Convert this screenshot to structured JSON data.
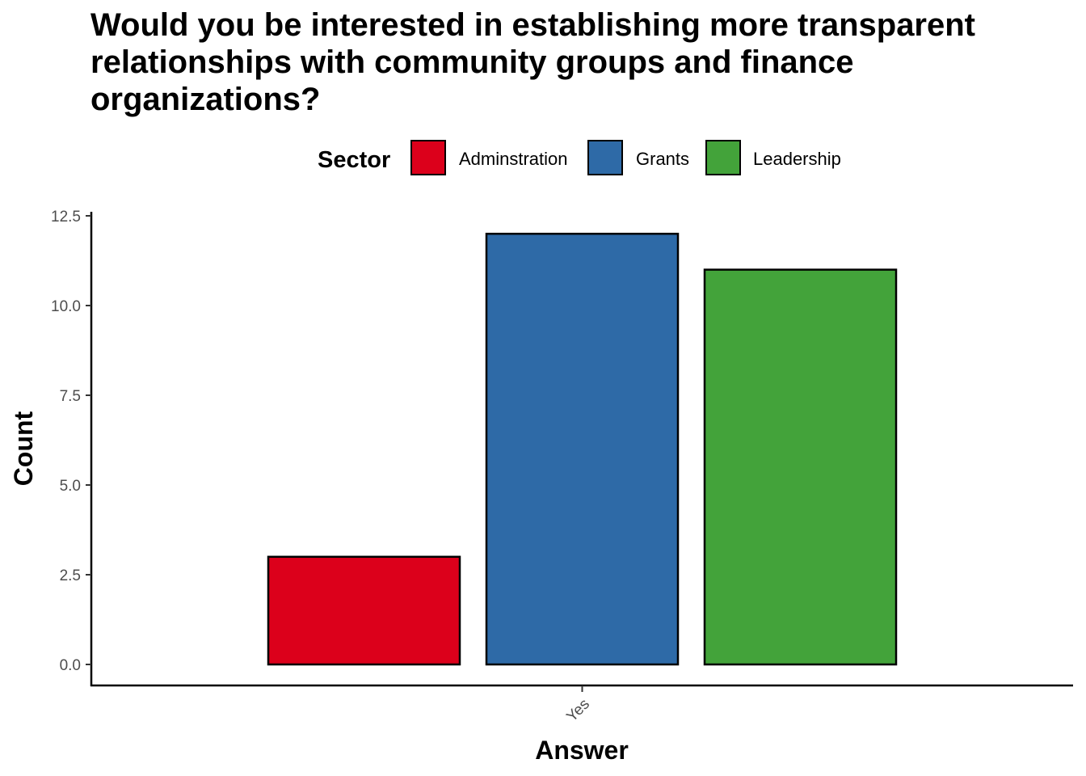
{
  "chart_data": {
    "type": "bar",
    "title": "Would you be interested in establishing more transparent relationships with community groups and finance organizations?",
    "xlabel": "Answer",
    "ylabel": "Count",
    "categories": [
      "Yes"
    ],
    "series": [
      {
        "name": "Adminstration",
        "values": [
          3
        ],
        "color": "#DC001B"
      },
      {
        "name": "Grants",
        "values": [
          12
        ],
        "color": "#2E6AA7"
      },
      {
        "name": "Leadership",
        "values": [
          11
        ],
        "color": "#43A33A"
      }
    ],
    "ylim": [
      0,
      12.5
    ],
    "yticks": [
      "0.0",
      "2.5",
      "5.0",
      "7.5",
      "10.0",
      "12.5"
    ],
    "legend": {
      "title": "Sector",
      "position": "top"
    },
    "grid": false
  }
}
